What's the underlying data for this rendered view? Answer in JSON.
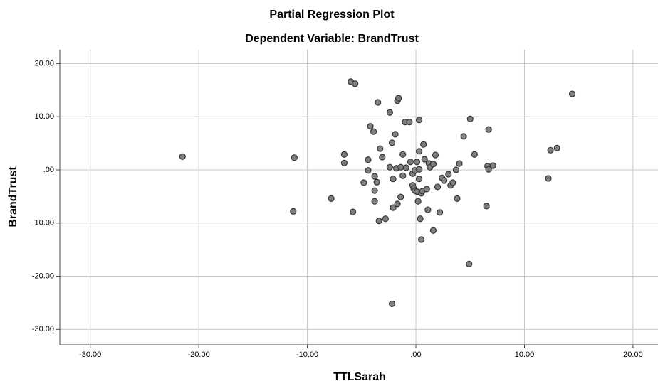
{
  "chart_data": {
    "type": "scatter",
    "title": "Partial Regression Plot",
    "subtitle": "Dependent Variable: BrandTrust",
    "x_label": "TTLSarah",
    "y_label": "BrandTrust",
    "color": "#7f7f7f",
    "edge_color": "#333333",
    "grid": true,
    "xlim": [
      -32.8,
      22.3
    ],
    "ylim": [
      -32.9,
      22.6
    ],
    "xticks": [
      {
        "value": -30,
        "label": "-30.00"
      },
      {
        "value": -20,
        "label": "-20.00"
      },
      {
        "value": -10,
        "label": "-10.00"
      },
      {
        "value": 0,
        "label": ".00"
      },
      {
        "value": 10,
        "label": "10.00"
      },
      {
        "value": 20,
        "label": "20.00"
      }
    ],
    "yticks": [
      {
        "value": 20,
        "label": "20.00"
      },
      {
        "value": 10,
        "label": "10.00"
      },
      {
        "value": 0,
        "label": ".00"
      },
      {
        "value": -10,
        "label": "-10.00"
      },
      {
        "value": -20,
        "label": "-20.00"
      },
      {
        "value": -30,
        "label": "-30.00"
      }
    ],
    "x": [
      -21.5,
      -11.2,
      -11.3,
      -7.8,
      -6.6,
      -6.6,
      -6.0,
      -5.6,
      -5.8,
      -4.8,
      -4.4,
      -4.4,
      -4.2,
      -3.9,
      -3.8,
      -3.8,
      -3.8,
      -3.6,
      -3.5,
      -3.3,
      -3.4,
      -3.1,
      -2.8,
      -2.4,
      -2.4,
      -2.2,
      -2.1,
      -2.1,
      -2.2,
      -1.9,
      -1.8,
      -1.7,
      -1.6,
      -1.7,
      -1.4,
      -1.4,
      -1.2,
      -1.2,
      -1.0,
      -0.9,
      -0.6,
      -0.5,
      -0.3,
      -0.3,
      -0.2,
      -0.1,
      -0.1,
      0.1,
      0.1,
      0.2,
      0.3,
      0.3,
      0.3,
      0.3,
      0.4,
      0.5,
      0.5,
      0.6,
      0.7,
      0.8,
      1.0,
      1.1,
      1.2,
      1.3,
      1.6,
      1.6,
      1.8,
      2.0,
      2.2,
      2.4,
      2.6,
      3.0,
      3.2,
      3.4,
      3.7,
      3.8,
      4.0,
      4.4,
      5.0,
      4.9,
      5.4,
      6.5,
      6.6,
      6.7,
      6.7,
      7.1,
      12.2,
      12.4,
      13.0,
      14.4
    ],
    "y": [
      2.5,
      2.3,
      -7.8,
      -5.4,
      2.9,
      1.3,
      16.6,
      16.2,
      -7.9,
      -2.4,
      1.9,
      -0.1,
      8.2,
      7.2,
      -1.2,
      -3.9,
      -5.9,
      -2.3,
      12.7,
      4.0,
      -9.6,
      2.4,
      -9.2,
      10.8,
      0.5,
      5.1,
      -1.7,
      -7.1,
      -25.2,
      6.7,
      0.3,
      13.0,
      13.5,
      -6.4,
      -5.1,
      0.5,
      2.9,
      -1.1,
      9.0,
      0.4,
      9.0,
      1.5,
      -0.7,
      -2.9,
      -3.5,
      -3.9,
      -0.1,
      1.5,
      -4.1,
      -5.9,
      3.5,
      0.1,
      -1.7,
      9.4,
      -9.2,
      -13.1,
      -4.4,
      -4.0,
      4.8,
      2.0,
      -3.6,
      -7.5,
      1.2,
      0.5,
      1.1,
      -11.4,
      2.8,
      -3.2,
      -8.0,
      -1.5,
      -2.0,
      -0.8,
      -2.9,
      -2.4,
      0.0,
      -5.4,
      1.2,
      6.3,
      9.6,
      -17.7,
      2.9,
      -6.8,
      0.7,
      7.6,
      0.1,
      0.8,
      -1.6,
      3.7,
      4.1,
      14.3
    ]
  }
}
